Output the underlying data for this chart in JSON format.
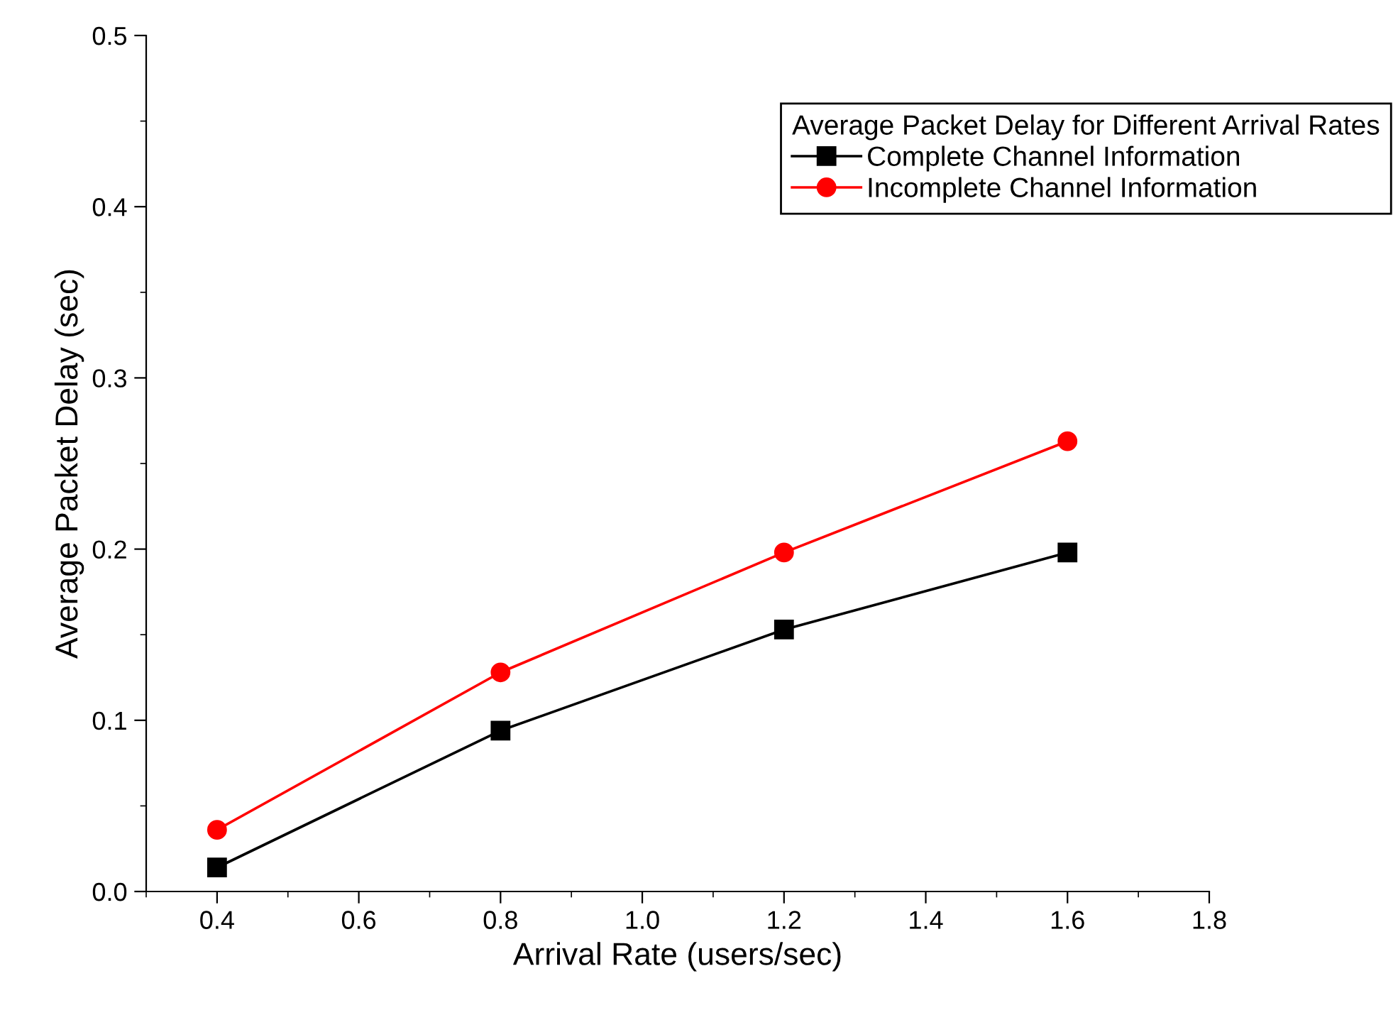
{
  "chart_data": {
    "type": "line",
    "xlabel": "Arrival Rate (users/sec)",
    "ylabel": "Average Packet Delay (sec)",
    "legend_title": "Average Packet Delay for Different Arrival Rates",
    "x": [
      0.4,
      0.8,
      1.2,
      1.6
    ],
    "series": [
      {
        "name": "Complete Channel Information",
        "color": "#000000",
        "marker": "square",
        "values": [
          0.014,
          0.094,
          0.153,
          0.198
        ]
      },
      {
        "name": "Incomplete Channel Information",
        "color": "#ff0000",
        "marker": "circle",
        "values": [
          0.036,
          0.128,
          0.198,
          0.263
        ]
      }
    ],
    "xlim": [
      0.3,
      1.8
    ],
    "xticks": [
      0.4,
      0.6,
      0.8,
      {
        "value": 1,
        "label": "1.0"
      },
      1.2,
      1.4,
      1.6,
      1.8
    ],
    "ylim": [
      0.0,
      0.5
    ],
    "yticks": [
      {
        "value": 0,
        "label": "0.0"
      },
      0.1,
      0.2,
      0.3,
      0.4,
      0.5
    ],
    "grid": false,
    "legend": "top right",
    "line_style": "solid"
  }
}
